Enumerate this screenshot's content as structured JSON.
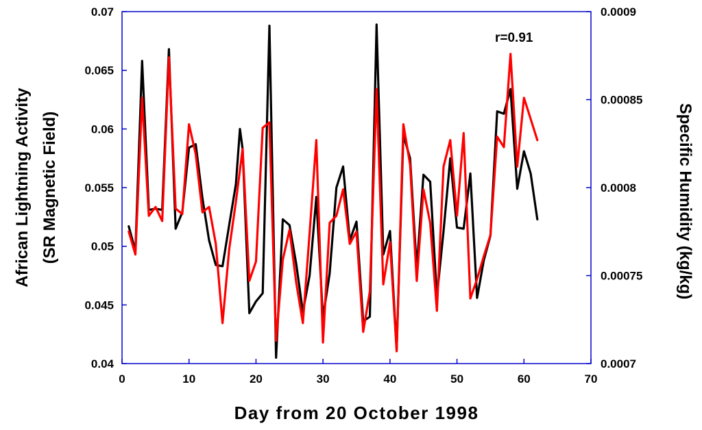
{
  "chart_data": {
    "type": "line",
    "xlabel": "Day from 20 October 1998",
    "ylabel_left": [
      "African Lightning Activity",
      "(SR Magnetic Field)"
    ],
    "ylabel_right": "Specific Humidity (kg/kg)",
    "annotation": "r=0.91",
    "xlim": [
      0,
      70
    ],
    "ylim_left": [
      0.04,
      0.07
    ],
    "ylim_right": [
      0.0007,
      0.0009
    ],
    "xticks": [
      "0",
      "10",
      "20",
      "30",
      "40",
      "50",
      "60",
      "70"
    ],
    "yticks_left": [
      "0.04",
      "0.045",
      "0.05",
      "0.055",
      "0.06",
      "0.065",
      "0.07"
    ],
    "yticks_right": [
      "0.0007",
      "0.00075",
      "0.0008",
      "0.00085",
      "0.0009"
    ],
    "grid": false,
    "frame_color": "#0000cc",
    "series": [
      {
        "axis": "left",
        "color": "#000000",
        "x": [
          1,
          2,
          3,
          4,
          5,
          6,
          7,
          8,
          9,
          10,
          11,
          12,
          13,
          14,
          15,
          16,
          17,
          17.6,
          18,
          19,
          20,
          21,
          22,
          23,
          24,
          25,
          26,
          27,
          28,
          29,
          30,
          31,
          32,
          33,
          34,
          35,
          36,
          37,
          38,
          39,
          40,
          41,
          42,
          43,
          44,
          45,
          46,
          47,
          48,
          49,
          50,
          51,
          52,
          53,
          54,
          55,
          56,
          57,
          58,
          59,
          60,
          61,
          62
        ],
        "y": [
          0.0517,
          0.0496,
          0.0658,
          0.0531,
          0.0532,
          0.0531,
          0.0668,
          0.0515,
          0.0529,
          0.0584,
          0.0587,
          0.0541,
          0.0505,
          0.0484,
          0.0483,
          0.0518,
          0.0553,
          0.06,
          0.0583,
          0.0443,
          0.0453,
          0.046,
          0.0688,
          0.0405,
          0.0523,
          0.0518,
          0.0485,
          0.0444,
          0.0475,
          0.0542,
          0.0439,
          0.0477,
          0.055,
          0.0568,
          0.0505,
          0.0521,
          0.0436,
          0.044,
          0.0689,
          0.0493,
          0.0513,
          0.0412,
          0.0595,
          0.0575,
          0.0481,
          0.0561,
          0.0555,
          0.0457,
          0.0513,
          0.0575,
          0.0516,
          0.0515,
          0.0562,
          0.0456,
          0.0488,
          0.0509,
          0.0615,
          0.0613,
          0.0634,
          0.0549,
          0.0581,
          0.0562,
          0.0523
        ]
      },
      {
        "axis": "right",
        "color": "#ff0000",
        "x": [
          1,
          2,
          3,
          4,
          5,
          6,
          7,
          8,
          9,
          10,
          11,
          12,
          13,
          14,
          15,
          16,
          17,
          18,
          19,
          20,
          21,
          22,
          23,
          24,
          25,
          26,
          27,
          28,
          29,
          30,
          31,
          32,
          33,
          34,
          35,
          36,
          37,
          38,
          39,
          40,
          41,
          42,
          43,
          44,
          45,
          46,
          47,
          48,
          49,
          50,
          51,
          52,
          53,
          54,
          55,
          56,
          57,
          58,
          59,
          60,
          61,
          62
        ],
        "y": [
          0.000775,
          0.000762,
          0.000851,
          0.000784,
          0.000789,
          0.000781,
          0.000874,
          0.000788,
          0.000785,
          0.000836,
          0.000819,
          0.000786,
          0.000789,
          0.000768,
          0.000723,
          0.000765,
          0.000792,
          0.000822,
          0.000747,
          0.000758,
          0.000834,
          0.000837,
          0.000713,
          0.000759,
          0.000776,
          0.000746,
          0.000723,
          0.000774,
          0.000827,
          0.000712,
          0.00078,
          0.000784,
          0.000799,
          0.000768,
          0.000775,
          0.000718,
          0.000741,
          0.000856,
          0.000745,
          0.000769,
          0.000707,
          0.000836,
          0.000813,
          0.000747,
          0.000799,
          0.00078,
          0.00073,
          0.000812,
          0.000827,
          0.000784,
          0.000831,
          0.000737,
          0.000748,
          0.000761,
          0.000773,
          0.000829,
          0.000823,
          0.000876,
          0.000812,
          0.000851,
          0.000839,
          0.000827
        ]
      }
    ]
  }
}
